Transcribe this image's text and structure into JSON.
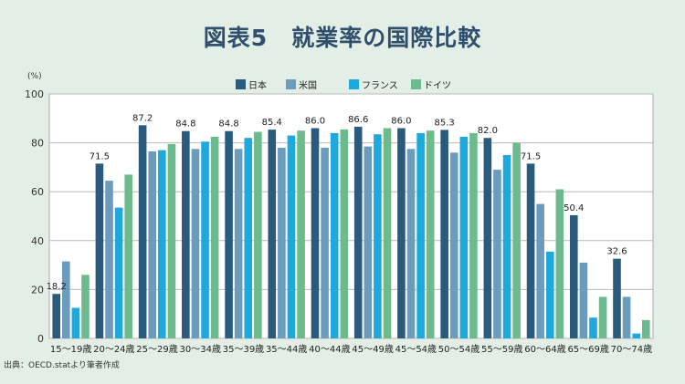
{
  "title": "図表5　就業率の国際比較",
  "source": "出典：OECD.statより筆者作成",
  "chart_data": {
    "type": "bar",
    "unit": "(%)",
    "ylim": [
      0,
      100
    ],
    "yticks": [
      0,
      20,
      40,
      60,
      80,
      100
    ],
    "grid": true,
    "legend_position": "top-center",
    "categories": [
      "15～19歳",
      "20～24歳",
      "25～29歳",
      "30～34歳",
      "35～39歳",
      "35～44歳",
      "40～44歳",
      "45～49歳",
      "45～54歳",
      "50～54歳",
      "55～59歳",
      "60～64歳",
      "65～69歳",
      "70～74歳"
    ],
    "series": [
      {
        "name": "日本",
        "color": "#2b5b7c",
        "values": [
          18.2,
          71.5,
          87.2,
          84.8,
          84.8,
          85.4,
          86.0,
          86.6,
          86.0,
          85.3,
          82.0,
          71.5,
          50.4,
          32.6
        ]
      },
      {
        "name": "米国",
        "color": "#6b9bbd",
        "values": [
          31.5,
          64.5,
          76.5,
          77.5,
          77.5,
          78.0,
          78.0,
          78.5,
          77.5,
          76.0,
          69.0,
          55.0,
          31.0,
          17.0
        ]
      },
      {
        "name": "フランス",
        "color": "#1ea8dc",
        "values": [
          12.5,
          53.5,
          77.0,
          80.5,
          82.0,
          83.0,
          84.0,
          83.5,
          84.0,
          82.5,
          75.0,
          35.5,
          8.5,
          2.0
        ]
      },
      {
        "name": "ドイツ",
        "color": "#6dbb8c",
        "values": [
          26.0,
          67.0,
          79.5,
          82.5,
          84.5,
          85.0,
          85.5,
          86.0,
          85.0,
          84.0,
          80.0,
          61.0,
          17.0,
          7.5
        ]
      }
    ],
    "data_labels": [
      "18.2",
      "71.5",
      "87.2",
      "84.8",
      "84.8",
      "85.4",
      "86.0",
      "86.6",
      "86.0",
      "85.3",
      "82.0",
      "71.5",
      "50.4",
      "32.6"
    ]
  }
}
